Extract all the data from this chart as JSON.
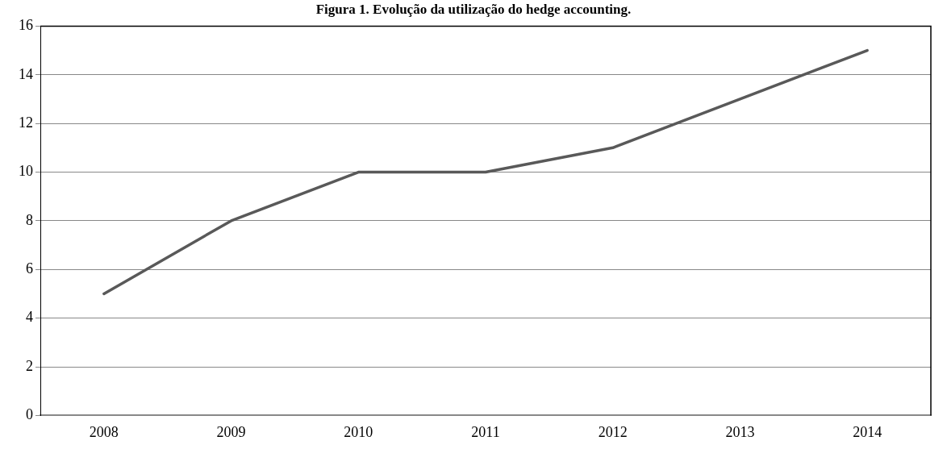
{
  "chart_data": {
    "type": "line",
    "title": "Figura 1. Evolução da utilização do hedge accounting.",
    "categories": [
      "2008",
      "2009",
      "2010",
      "2011",
      "2012",
      "2013",
      "2014"
    ],
    "series": [
      {
        "color": "#595959",
        "values": [
          5,
          8,
          10,
          10,
          11,
          13,
          15
        ]
      }
    ],
    "ylim": [
      0,
      16
    ],
    "yticks": [
      0,
      2,
      4,
      6,
      8,
      10,
      12,
      14,
      16
    ],
    "grid": "y",
    "legend": false,
    "marker": "none",
    "line_style": "solid"
  }
}
